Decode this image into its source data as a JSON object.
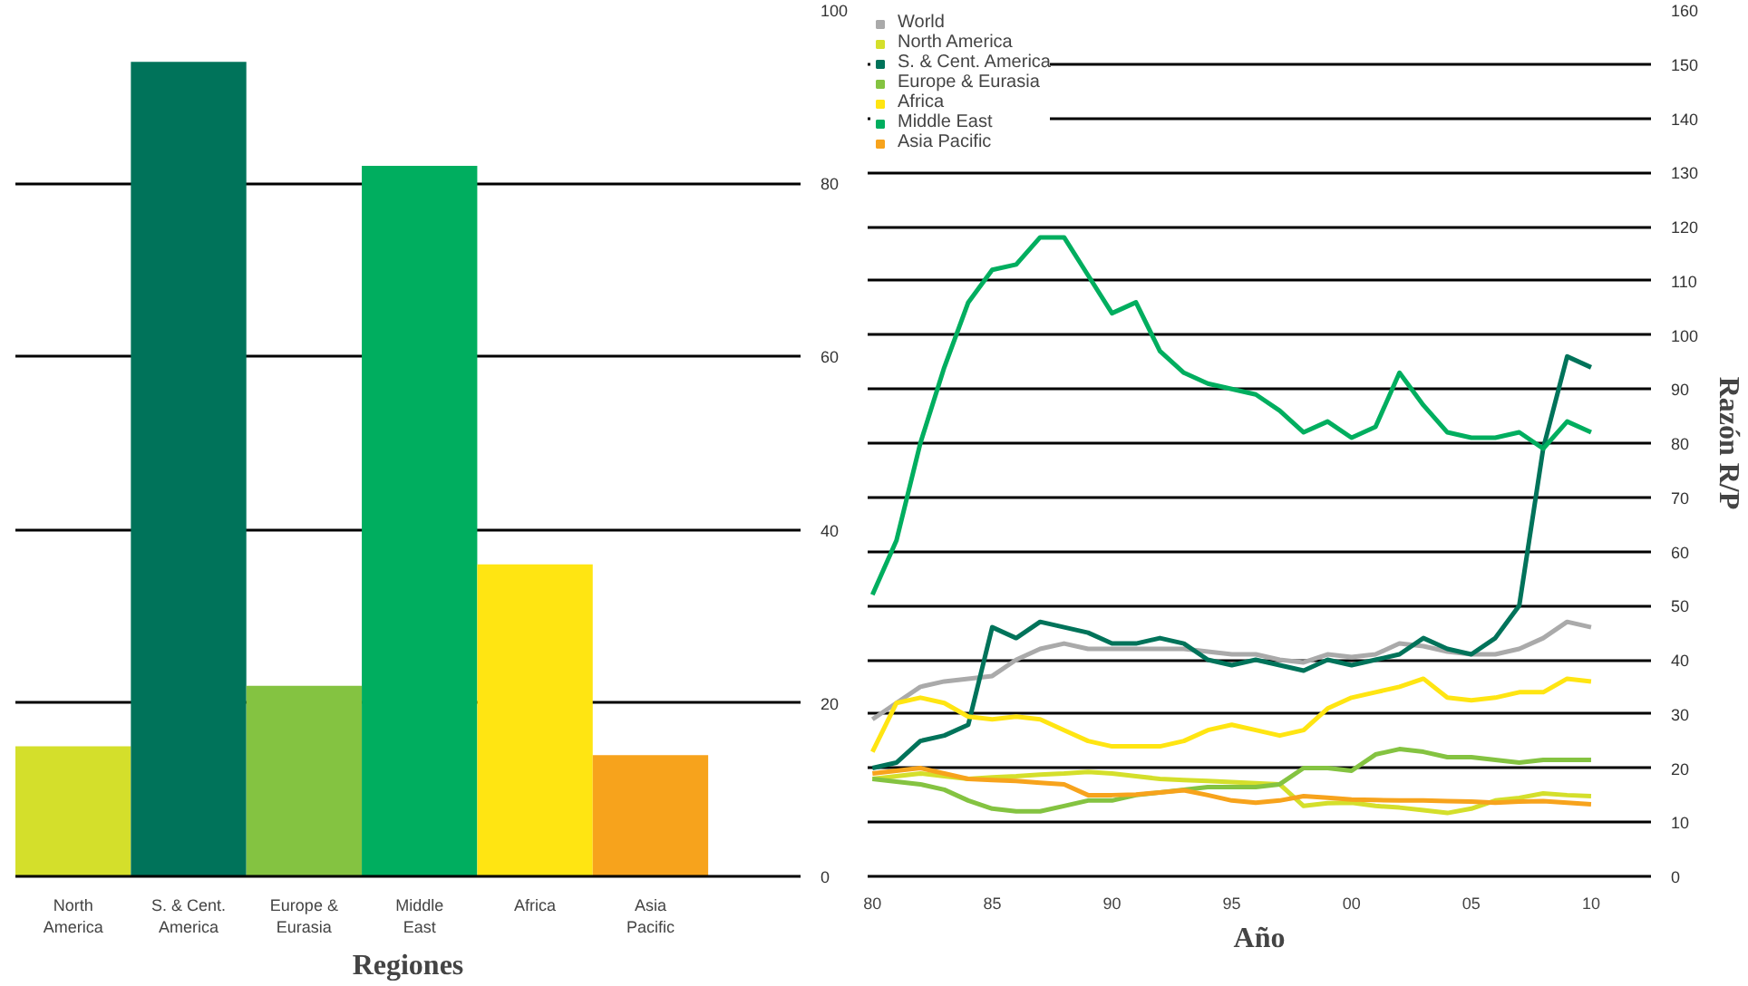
{
  "chart_data": [
    {
      "type": "bar",
      "xlabel": "Regiones",
      "categories": [
        "North America",
        "S. & Cent. America",
        "Europe & Eurasia",
        "Middle East",
        "Africa",
        "Asia Pacific"
      ],
      "values": [
        15,
        94,
        22,
        82,
        36,
        14
      ],
      "colors": [
        "#d4df2b",
        "#00735a",
        "#84c341",
        "#00ae5f",
        "#ffe512",
        "#f7a31c"
      ],
      "ylim": [
        0,
        100
      ],
      "yticks": [
        0,
        20,
        40,
        60,
        80,
        100
      ],
      "grid": "y"
    },
    {
      "type": "line",
      "xlabel": "Año",
      "ylabel": "Razón R/P",
      "xlim": [
        1979.8,
        2012.5
      ],
      "xticks": [
        {
          "value": 1980,
          "label": "80"
        },
        {
          "value": 1985,
          "label": "85"
        },
        {
          "value": 1990,
          "label": "90"
        },
        {
          "value": 1995,
          "label": "95"
        },
        {
          "value": 2000,
          "label": "00"
        },
        {
          "value": 2005,
          "label": "05"
        },
        {
          "value": 2010,
          "label": "10"
        }
      ],
      "ylim": [
        0,
        160
      ],
      "yticks": [
        0,
        10,
        20,
        30,
        40,
        50,
        60,
        70,
        80,
        90,
        100,
        110,
        120,
        130,
        140,
        150,
        160
      ],
      "grid": "y",
      "legend": "top left",
      "marker": "none",
      "line_style": "solid",
      "x": [
        1980,
        1981,
        1982,
        1983,
        1984,
        1985,
        1986,
        1987,
        1988,
        1989,
        1990,
        1991,
        1992,
        1993,
        1994,
        1995,
        1996,
        1997,
        1998,
        1999,
        2000,
        2001,
        2002,
        2003,
        2004,
        2005,
        2006,
        2007,
        2008,
        2009,
        2010
      ],
      "series": [
        {
          "name": "World",
          "color": "#aaaaaa",
          "values": [
            29,
            32,
            35,
            36,
            36.5,
            37,
            40,
            42,
            43,
            42,
            42,
            42,
            42,
            42,
            41.5,
            41,
            41,
            40,
            39.5,
            41,
            40.5,
            41,
            43,
            42.5,
            41.5,
            41,
            41,
            42,
            44,
            47,
            46
          ]
        },
        {
          "name": "North America",
          "color": "#d4df2b",
          "values": [
            18,
            18.5,
            19,
            18.5,
            18,
            18.3,
            18.5,
            18.8,
            19,
            19.3,
            19,
            18.5,
            18,
            17.8,
            17.6,
            17.4,
            17.2,
            17,
            13,
            13.5,
            13.6,
            13,
            12.7,
            12.2,
            11.7,
            12.5,
            14,
            14.5,
            15.3,
            15,
            14.8
          ]
        },
        {
          "name": "S. & Cent. America",
          "color": "#00735a",
          "values": [
            20,
            21,
            25,
            26,
            28,
            46,
            44,
            47,
            46,
            45,
            43,
            43,
            44,
            43,
            40,
            39,
            40,
            39,
            38,
            40,
            39,
            40,
            41,
            44,
            42,
            41,
            44,
            50,
            79,
            96,
            94
          ]
        },
        {
          "name": "Europe & Eurasia",
          "color": "#84c341",
          "values": [
            18,
            17.5,
            17,
            16,
            14,
            12.5,
            12,
            12,
            13,
            14,
            14,
            15,
            15.5,
            16,
            16.5,
            16.5,
            16.5,
            17,
            20,
            20,
            19.5,
            22.5,
            23.5,
            23,
            22,
            22,
            21.5,
            21,
            21.5,
            21.5,
            21.5
          ]
        },
        {
          "name": "Africa",
          "color": "#ffe512",
          "values": [
            23,
            32,
            33,
            32,
            29.5,
            29,
            29.5,
            29,
            27,
            25,
            24,
            24,
            24,
            25,
            27,
            28,
            27,
            26,
            27,
            31,
            33,
            34,
            35,
            36.5,
            33,
            32.5,
            33,
            34,
            34,
            36.5,
            36
          ]
        },
        {
          "name": "Middle East",
          "color": "#00ae5f",
          "values": [
            52,
            62,
            80,
            94,
            106,
            112,
            113,
            118,
            118,
            111,
            104,
            106,
            97,
            93,
            91,
            90,
            89,
            86,
            82,
            84,
            81,
            83,
            93,
            87,
            82,
            81,
            81,
            82,
            79,
            84,
            82
          ]
        },
        {
          "name": "Asia Pacific",
          "color": "#f7a31c",
          "values": [
            19,
            19.5,
            20,
            19,
            18,
            17.8,
            17.6,
            17.3,
            17,
            15,
            15,
            15.1,
            15.5,
            15.9,
            15,
            14,
            13.6,
            14,
            14.8,
            14.5,
            14.2,
            14.1,
            14,
            14,
            13.9,
            13.8,
            13.6,
            13.8,
            13.9,
            13.6,
            13.3
          ]
        }
      ]
    }
  ]
}
